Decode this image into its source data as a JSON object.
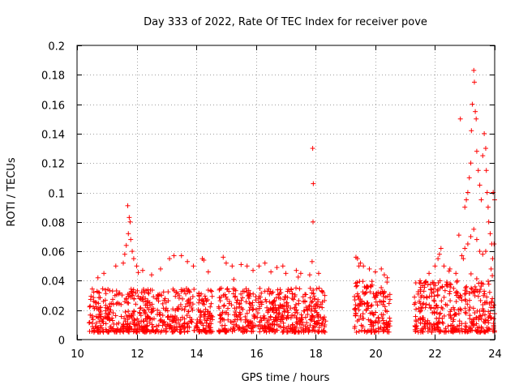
{
  "chart_data": {
    "type": "scatter",
    "title": "Day 333 of 2022, Rate Of TEC Index for receiver pove",
    "xlabel": "GPS time / hours",
    "ylabel": "ROTI / TECUs",
    "xlim": [
      10,
      24
    ],
    "ylim": [
      0,
      0.2
    ],
    "x_ticks": [
      10,
      12,
      14,
      16,
      18,
      20,
      22,
      24
    ],
    "x_tick_labels": [
      "10",
      "12",
      "14",
      "16",
      "18",
      "20",
      "22",
      "24"
    ],
    "y_ticks": [
      0,
      0.02,
      0.04,
      0.06,
      0.08,
      0.1,
      0.12,
      0.14,
      0.16,
      0.18,
      0.2
    ],
    "y_tick_labels": [
      "0",
      "0.02",
      "0.04",
      "0.06",
      "0.08",
      "0.1",
      "0.12",
      "0.14",
      "0.16",
      "0.18",
      "0.2"
    ],
    "grid": true,
    "marker": "+",
    "marker_color": "#ff0000",
    "data_segments": [
      {
        "x_start": 10.4,
        "x_end": 14.55,
        "baseline_min": 0.005,
        "baseline_max": 0.035
      },
      {
        "x_start": 14.75,
        "x_end": 18.35,
        "baseline_min": 0.005,
        "baseline_max": 0.035
      },
      {
        "x_start": 19.3,
        "x_end": 20.5,
        "baseline_min": 0.005,
        "baseline_max": 0.04
      },
      {
        "x_start": 21.3,
        "x_end": 24.0,
        "baseline_min": 0.005,
        "baseline_max": 0.04
      }
    ],
    "series": [
      {
        "name": "ROTI",
        "points": [
          [
            11.7,
            0.091
          ],
          [
            11.75,
            0.083
          ],
          [
            11.78,
            0.08
          ],
          [
            11.72,
            0.072
          ],
          [
            11.8,
            0.068
          ],
          [
            11.65,
            0.064
          ],
          [
            11.85,
            0.06
          ],
          [
            11.6,
            0.058
          ],
          [
            11.9,
            0.055
          ],
          [
            11.3,
            0.05
          ],
          [
            11.55,
            0.052
          ],
          [
            12.0,
            0.05
          ],
          [
            12.2,
            0.047
          ],
          [
            13.1,
            0.055
          ],
          [
            13.25,
            0.057
          ],
          [
            13.5,
            0.057
          ],
          [
            13.7,
            0.053
          ],
          [
            14.2,
            0.055
          ],
          [
            14.25,
            0.054
          ],
          [
            13.9,
            0.05
          ],
          [
            12.8,
            0.048
          ],
          [
            10.9,
            0.045
          ],
          [
            10.7,
            0.042
          ],
          [
            12.5,
            0.044
          ],
          [
            14.4,
            0.046
          ],
          [
            14.9,
            0.056
          ],
          [
            15.0,
            0.052
          ],
          [
            15.2,
            0.05
          ],
          [
            15.5,
            0.051
          ],
          [
            15.7,
            0.05
          ],
          [
            16.1,
            0.05
          ],
          [
            16.3,
            0.052
          ],
          [
            16.7,
            0.049
          ],
          [
            16.9,
            0.05
          ],
          [
            17.35,
            0.047
          ],
          [
            17.5,
            0.045
          ],
          [
            17.8,
            0.044
          ],
          [
            16.5,
            0.046
          ],
          [
            17.0,
            0.045
          ],
          [
            15.9,
            0.047
          ],
          [
            17.9,
            0.13
          ],
          [
            17.92,
            0.106
          ],
          [
            17.91,
            0.08
          ],
          [
            17.88,
            0.053
          ],
          [
            18.1,
            0.045
          ],
          [
            19.35,
            0.056
          ],
          [
            19.4,
            0.055
          ],
          [
            19.5,
            0.052
          ],
          [
            19.6,
            0.05
          ],
          [
            19.8,
            0.048
          ],
          [
            20.0,
            0.046
          ],
          [
            20.2,
            0.048
          ],
          [
            20.4,
            0.042
          ],
          [
            19.45,
            0.05
          ],
          [
            20.3,
            0.044
          ],
          [
            21.5,
            0.04
          ],
          [
            21.8,
            0.045
          ],
          [
            22.0,
            0.05
          ],
          [
            22.1,
            0.055
          ],
          [
            22.15,
            0.058
          ],
          [
            22.2,
            0.062
          ],
          [
            22.3,
            0.05
          ],
          [
            22.5,
            0.048
          ],
          [
            22.7,
            0.045
          ],
          [
            22.8,
            0.071
          ],
          [
            22.85,
            0.15
          ],
          [
            23.0,
            0.09
          ],
          [
            23.05,
            0.095
          ],
          [
            23.1,
            0.1
          ],
          [
            23.15,
            0.11
          ],
          [
            23.2,
            0.12
          ],
          [
            23.22,
            0.142
          ],
          [
            23.25,
            0.16
          ],
          [
            23.3,
            0.183
          ],
          [
            23.32,
            0.175
          ],
          [
            23.35,
            0.155
          ],
          [
            23.38,
            0.15
          ],
          [
            23.4,
            0.128
          ],
          [
            23.45,
            0.115
          ],
          [
            23.5,
            0.105
          ],
          [
            23.55,
            0.095
          ],
          [
            23.6,
            0.125
          ],
          [
            23.65,
            0.14
          ],
          [
            23.7,
            0.13
          ],
          [
            23.72,
            0.115
          ],
          [
            23.75,
            0.1
          ],
          [
            23.78,
            0.09
          ],
          [
            23.8,
            0.08
          ],
          [
            23.85,
            0.072
          ],
          [
            23.9,
            0.065
          ],
          [
            23.95,
            0.1
          ],
          [
            24.0,
            0.095
          ],
          [
            23.98,
            0.065
          ],
          [
            23.93,
            0.055
          ],
          [
            23.88,
            0.048
          ],
          [
            23.1,
            0.065
          ],
          [
            23.0,
            0.062
          ],
          [
            23.2,
            0.07
          ],
          [
            23.3,
            0.075
          ],
          [
            23.4,
            0.068
          ],
          [
            22.9,
            0.057
          ],
          [
            22.95,
            0.055
          ],
          [
            23.5,
            0.06
          ],
          [
            23.6,
            0.058
          ],
          [
            23.7,
            0.06
          ]
        ]
      }
    ]
  }
}
